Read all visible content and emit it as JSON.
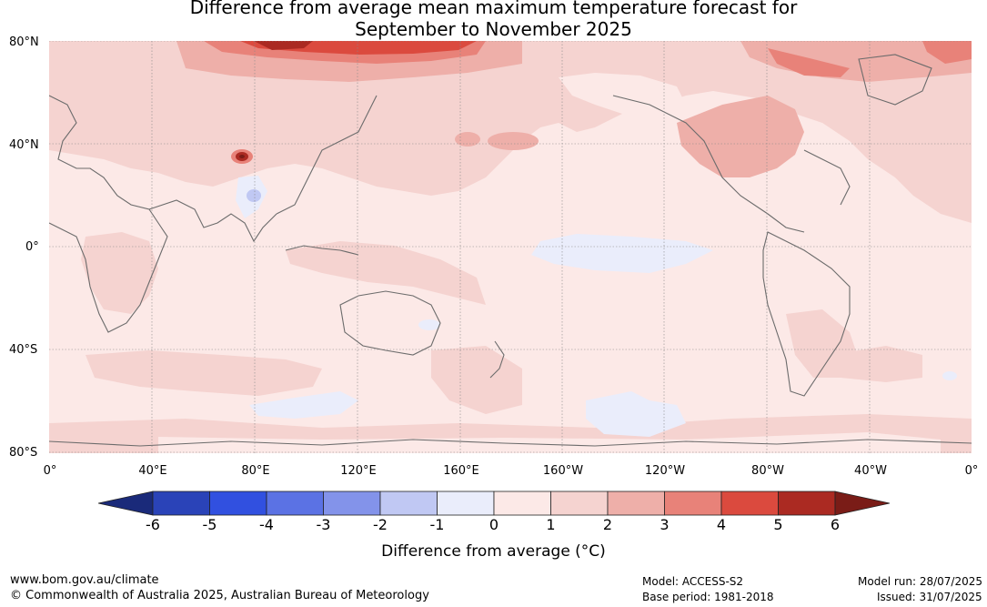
{
  "title_line1": "Difference from average mean maximum temperature forecast for",
  "title_line2": "September to November 2025",
  "lat_labels": [
    "80°N",
    "40°N",
    "0°",
    "40°S",
    "80°S"
  ],
  "lon_labels": [
    "0°",
    "40°E",
    "80°E",
    "120°E",
    "160°E",
    "160°W",
    "120°W",
    "80°W",
    "40°W",
    "0°"
  ],
  "legend": {
    "title": "Difference from average (°C)",
    "ticks": [
      "-6",
      "-5",
      "-4",
      "-3",
      "-2",
      "-1",
      "0",
      "1",
      "2",
      "3",
      "4",
      "5",
      "6"
    ],
    "colors": [
      "#1a2a7a",
      "#2a43b8",
      "#3150e0",
      "#5b72e4",
      "#8393ea",
      "#c0c8f3",
      "#eaedfb",
      "#fce9e7",
      "#f5d3d0",
      "#eeafa9",
      "#e88279",
      "#db4a3e",
      "#ab2a22",
      "#7a1c17"
    ]
  },
  "footer": {
    "website": "www.bom.gov.au/climate",
    "copyright": "© Commonwealth of Australia 2025, Australian Bureau of Meteorology",
    "model": "Model: ACCESS-S2",
    "base_period": "Base period: 1981-2018",
    "model_run": "Model run: 28/07/2025",
    "issued": "Issued: 31/07/2025"
  }
}
